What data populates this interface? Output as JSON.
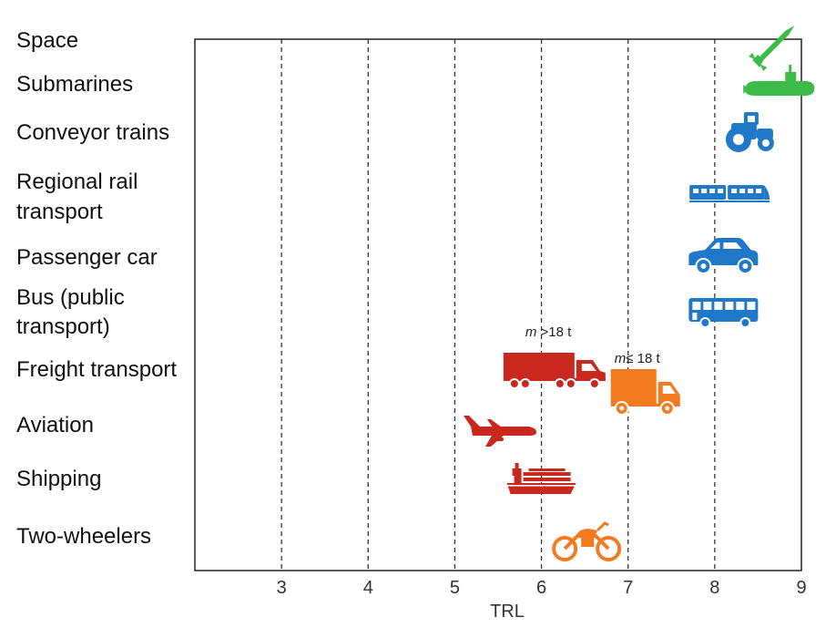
{
  "chart_data": {
    "type": "scatter",
    "xlabel": "TRL",
    "xlim": [
      2,
      9
    ],
    "xticks": [
      3,
      4,
      5,
      6,
      7,
      8,
      9
    ],
    "grid": "vertical dashed",
    "categories": [
      {
        "key": "space",
        "lines": [
          "Space"
        ]
      },
      {
        "key": "submarines",
        "lines": [
          "Submarines"
        ]
      },
      {
        "key": "conveyor",
        "lines": [
          "Conveyor trains"
        ]
      },
      {
        "key": "regional",
        "lines": [
          "Regional rail",
          "transport"
        ]
      },
      {
        "key": "car",
        "lines": [
          "Passenger car"
        ]
      },
      {
        "key": "bus",
        "lines": [
          "Bus (public",
          "transport)"
        ]
      },
      {
        "key": "freight",
        "lines": [
          "Freight transport"
        ]
      },
      {
        "key": "aviation",
        "lines": [
          "Aviation"
        ]
      },
      {
        "key": "shipping",
        "lines": [
          "Shipping"
        ]
      },
      {
        "key": "twowheel",
        "lines": [
          "Two-wheelers"
        ]
      }
    ],
    "points": [
      {
        "category": "space",
        "trl": 8.75,
        "icon": "rocket-icon",
        "color": "#3dbb48"
      },
      {
        "category": "submarines",
        "trl": 8.75,
        "icon": "submarine-icon",
        "color": "#3dbb48"
      },
      {
        "category": "conveyor",
        "trl": 8.4,
        "icon": "tractor-icon",
        "color": "#1f78c8"
      },
      {
        "category": "regional",
        "trl": 8.15,
        "icon": "train-icon",
        "color": "#1f78c8"
      },
      {
        "category": "car",
        "trl": 8.1,
        "icon": "car-icon",
        "color": "#1f78c8"
      },
      {
        "category": "bus",
        "trl": 8.1,
        "icon": "bus-icon",
        "color": "#1f78c8"
      },
      {
        "category": "freight",
        "trl": 6.15,
        "icon": "heavy-truck-icon",
        "color": "#c8281e",
        "label_math": "m",
        "label_rest": " >18 t"
      },
      {
        "category": "freight",
        "trl": 7.2,
        "icon": "light-truck-icon",
        "color": "#f47a20",
        "label_math": "m",
        "label_rest": "≤ 18 t"
      },
      {
        "category": "aviation",
        "trl": 5.5,
        "icon": "airplane-icon",
        "color": "#c8281e"
      },
      {
        "category": "shipping",
        "trl": 6,
        "icon": "container-ship-icon",
        "color": "#c8281e"
      },
      {
        "category": "twowheel",
        "trl": 6.5,
        "icon": "motorcycle-icon",
        "color": "#f47a20"
      }
    ]
  }
}
